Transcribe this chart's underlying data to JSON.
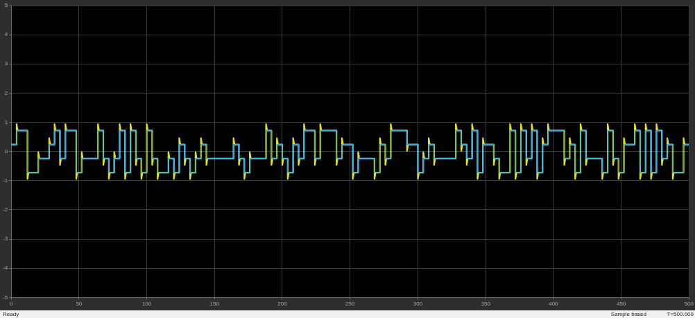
{
  "chart_data": {
    "type": "line",
    "xlim": [
      0,
      500
    ],
    "xticks": [
      0,
      50,
      100,
      150,
      200,
      250,
      300,
      350,
      400,
      450,
      500
    ],
    "ylim": [
      -5,
      5
    ],
    "yticks": [
      -5,
      -4,
      -3,
      -2,
      -1,
      0,
      1,
      2,
      3,
      4,
      5
    ],
    "grid": true,
    "legend": false,
    "marker": "none",
    "line_style": "solid",
    "annotations": [
      "Ready",
      "Sample based",
      "T=500.000"
    ],
    "series": [
      {
        "type": "line",
        "color": "#e3e01c",
        "x": [
          0,
          4,
          4,
          4.8,
          12,
          12,
          12.8,
          20,
          20,
          20.8,
          28,
          28,
          28.8,
          32,
          32,
          32.8,
          36,
          36,
          36.8,
          40,
          40,
          40.8,
          48,
          48,
          48.8,
          52,
          52,
          52.8,
          64,
          64,
          64.8,
          68,
          68,
          68.8,
          72,
          72,
          72.8,
          76,
          76,
          76.8,
          80,
          80,
          80.8,
          84,
          84,
          84.8,
          88,
          88,
          88.8,
          92,
          92,
          92.8,
          96,
          96,
          96.8,
          100,
          100,
          100.8,
          104,
          104,
          104.8,
          108,
          108,
          108.8,
          116,
          116,
          116.8,
          120,
          120,
          120.8,
          124,
          124,
          124.8,
          128,
          128,
          128.8,
          132,
          132,
          132.8,
          136,
          136,
          136.8,
          140,
          140,
          140.8,
          144,
          144,
          144.8,
          164,
          164,
          164.8,
          168,
          168,
          168.8,
          172,
          172,
          172.8,
          176,
          176,
          176.8,
          188,
          188,
          188.8,
          192,
          192,
          192.8,
          196,
          196,
          196.8,
          200,
          200,
          200.8,
          204,
          204,
          204.8,
          208,
          208,
          208.8,
          212,
          212,
          212.8,
          216,
          216,
          216.8,
          224,
          224,
          224.8,
          228,
          228,
          228.8,
          240,
          240,
          240.8,
          244,
          244,
          244.8,
          252,
          252,
          252.8,
          256,
          256,
          256.8,
          268,
          268,
          268.8,
          272,
          272,
          272.8,
          276,
          276,
          276.8,
          280,
          280,
          280.8,
          292,
          292,
          292.8,
          300,
          300,
          300.8,
          304,
          304,
          304.8,
          308,
          308,
          308.8,
          312,
          312,
          312.8,
          328,
          328,
          328.8,
          332,
          332,
          332.8,
          336,
          336,
          336.8,
          340,
          340,
          340.8,
          344,
          344,
          344.8,
          348,
          348,
          348.8,
          356,
          356,
          356.8,
          360,
          360,
          360.8,
          368,
          368,
          368.8,
          372,
          372,
          372.8,
          376,
          376,
          376.8,
          380,
          380,
          380.8,
          384,
          384,
          384.8,
          388,
          388,
          388.8,
          392,
          392,
          392.8,
          396,
          396,
          396.8,
          408,
          408,
          408.8,
          412,
          412,
          412.8,
          416,
          416,
          416.8,
          420,
          420,
          420.8,
          424,
          424,
          424.8,
          436,
          436,
          436.8,
          440,
          440,
          440.8,
          444,
          444,
          444.8,
          448,
          448,
          448.8,
          452,
          452,
          452.8,
          460,
          460,
          460.8,
          464,
          464,
          464.8,
          468,
          468,
          468.8,
          472,
          472,
          472.8,
          476,
          476,
          476.8,
          480,
          480,
          480.8,
          484,
          484,
          484.8,
          488,
          488,
          488.8,
          496,
          496,
          496.8,
          500
        ],
        "values": [
          0.24,
          0.24,
          0.94,
          0.72,
          0.72,
          -0.94,
          -0.72,
          -0.72,
          -0.02,
          -0.24,
          -0.24,
          0.46,
          0.24,
          0.24,
          0.94,
          0.72,
          0.72,
          -0.46,
          -0.24,
          -0.24,
          0.94,
          0.72,
          0.72,
          -0.94,
          -0.72,
          -0.72,
          -0.02,
          -0.24,
          -0.24,
          0.94,
          0.72,
          0.72,
          -0.46,
          -0.24,
          -0.24,
          -0.94,
          -0.72,
          -0.72,
          -0.02,
          -0.24,
          -0.24,
          0.94,
          0.72,
          0.72,
          -0.94,
          -0.72,
          -0.72,
          0.94,
          0.72,
          0.72,
          -0.46,
          -0.24,
          -0.24,
          -0.94,
          -0.72,
          -0.72,
          0.94,
          0.72,
          0.72,
          -0.46,
          -0.24,
          -0.24,
          -0.94,
          -0.72,
          -0.72,
          -0.02,
          -0.24,
          -0.24,
          -0.94,
          -0.72,
          -0.72,
          0.46,
          0.24,
          0.24,
          -0.46,
          -0.24,
          -0.24,
          -0.94,
          -0.72,
          -0.72,
          -0.02,
          -0.24,
          -0.24,
          0.46,
          0.24,
          0.24,
          -0.46,
          -0.24,
          -0.24,
          0.46,
          0.24,
          0.24,
          -0.46,
          -0.24,
          -0.24,
          -0.94,
          -0.72,
          -0.72,
          -0.02,
          -0.24,
          -0.24,
          0.94,
          0.72,
          0.72,
          -0.46,
          -0.24,
          -0.24,
          0.46,
          0.24,
          0.24,
          -0.46,
          -0.24,
          -0.24,
          -0.94,
          -0.72,
          -0.72,
          0.46,
          0.24,
          0.24,
          -0.46,
          -0.24,
          -0.24,
          0.94,
          0.72,
          0.72,
          -0.46,
          -0.24,
          -0.24,
          0.94,
          0.72,
          0.72,
          -0.46,
          -0.24,
          -0.24,
          0.46,
          0.24,
          0.24,
          -0.94,
          -0.72,
          -0.72,
          -0.02,
          -0.24,
          -0.24,
          -0.94,
          -0.72,
          -0.72,
          0.46,
          0.24,
          0.24,
          -0.46,
          -0.24,
          -0.24,
          0.94,
          0.72,
          0.72,
          0.02,
          0.24,
          0.24,
          -0.94,
          -0.72,
          -0.72,
          -0.02,
          -0.24,
          -0.24,
          0.46,
          0.24,
          0.24,
          -0.46,
          -0.24,
          -0.24,
          0.94,
          0.72,
          0.72,
          0.02,
          0.24,
          0.24,
          -0.46,
          -0.24,
          -0.24,
          0.94,
          0.72,
          0.72,
          -0.94,
          -0.72,
          -0.72,
          0.46,
          0.24,
          0.24,
          -0.46,
          -0.24,
          -0.24,
          -0.94,
          -0.72,
          -0.72,
          0.94,
          0.72,
          0.72,
          -0.94,
          -0.72,
          -0.72,
          0.94,
          0.72,
          0.72,
          -0.46,
          -0.24,
          -0.24,
          0.94,
          0.72,
          0.72,
          -0.94,
          -0.72,
          -0.72,
          0.46,
          0.24,
          0.24,
          0.94,
          0.72,
          0.72,
          -0.46,
          -0.24,
          -0.24,
          0.46,
          0.24,
          0.24,
          -0.94,
          -0.72,
          -0.72,
          0.94,
          0.72,
          0.72,
          -0.46,
          -0.24,
          -0.24,
          -0.94,
          -0.72,
          -0.72,
          0.94,
          0.72,
          0.72,
          -0.46,
          -0.24,
          -0.24,
          -0.94,
          -0.72,
          -0.72,
          0.46,
          0.24,
          0.24,
          0.94,
          0.72,
          0.72,
          -0.94,
          -0.72,
          -0.72,
          0.94,
          0.72,
          0.72,
          -0.94,
          -0.72,
          -0.72,
          0.94,
          0.72,
          0.72,
          -0.46,
          -0.24,
          -0.24,
          0.46,
          0.24,
          0.24,
          -0.94,
          -0.72,
          -0.72,
          0.46,
          0.24,
          0.24
        ]
      },
      {
        "type": "step",
        "color": "#24b3e6",
        "x": [
          0,
          4,
          12,
          20,
          28,
          32,
          36,
          40,
          48,
          52,
          64,
          68,
          72,
          76,
          80,
          84,
          88,
          92,
          96,
          100,
          104,
          108,
          116,
          120,
          124,
          128,
          132,
          136,
          140,
          144,
          164,
          168,
          172,
          176,
          188,
          192,
          196,
          200,
          204,
          208,
          212,
          216,
          224,
          228,
          240,
          244,
          252,
          256,
          268,
          272,
          276,
          280,
          292,
          300,
          304,
          308,
          312,
          328,
          332,
          336,
          340,
          344,
          348,
          356,
          360,
          368,
          372,
          376,
          380,
          384,
          388,
          392,
          396,
          408,
          412,
          416,
          420,
          424,
          436,
          440,
          444,
          448,
          452,
          460,
          464,
          468,
          472,
          476,
          480,
          484,
          488,
          496,
          500
        ],
        "values": [
          0.24,
          0.72,
          -0.72,
          -0.24,
          0.24,
          0.72,
          -0.24,
          0.72,
          -0.72,
          -0.24,
          0.72,
          -0.24,
          -0.72,
          -0.24,
          0.72,
          -0.72,
          0.72,
          -0.24,
          -0.72,
          0.72,
          -0.24,
          -0.72,
          -0.24,
          -0.72,
          0.24,
          -0.24,
          -0.72,
          -0.24,
          0.24,
          -0.24,
          0.24,
          -0.24,
          -0.72,
          -0.24,
          0.72,
          -0.24,
          0.24,
          -0.24,
          -0.72,
          0.24,
          -0.24,
          0.72,
          -0.24,
          0.72,
          -0.24,
          0.24,
          -0.72,
          -0.24,
          -0.72,
          0.24,
          -0.24,
          0.72,
          0.24,
          -0.72,
          -0.24,
          0.24,
          -0.24,
          0.72,
          0.24,
          -0.24,
          0.72,
          -0.72,
          0.24,
          -0.24,
          -0.72,
          0.72,
          -0.72,
          0.72,
          -0.24,
          0.72,
          -0.72,
          0.24,
          0.72,
          -0.24,
          0.24,
          -0.72,
          0.72,
          -0.24,
          -0.72,
          0.72,
          -0.24,
          -0.72,
          0.24,
          0.72,
          -0.72,
          0.72,
          -0.72,
          0.72,
          -0.24,
          0.24,
          -0.72,
          0.24,
          0.24
        ]
      }
    ]
  }
}
